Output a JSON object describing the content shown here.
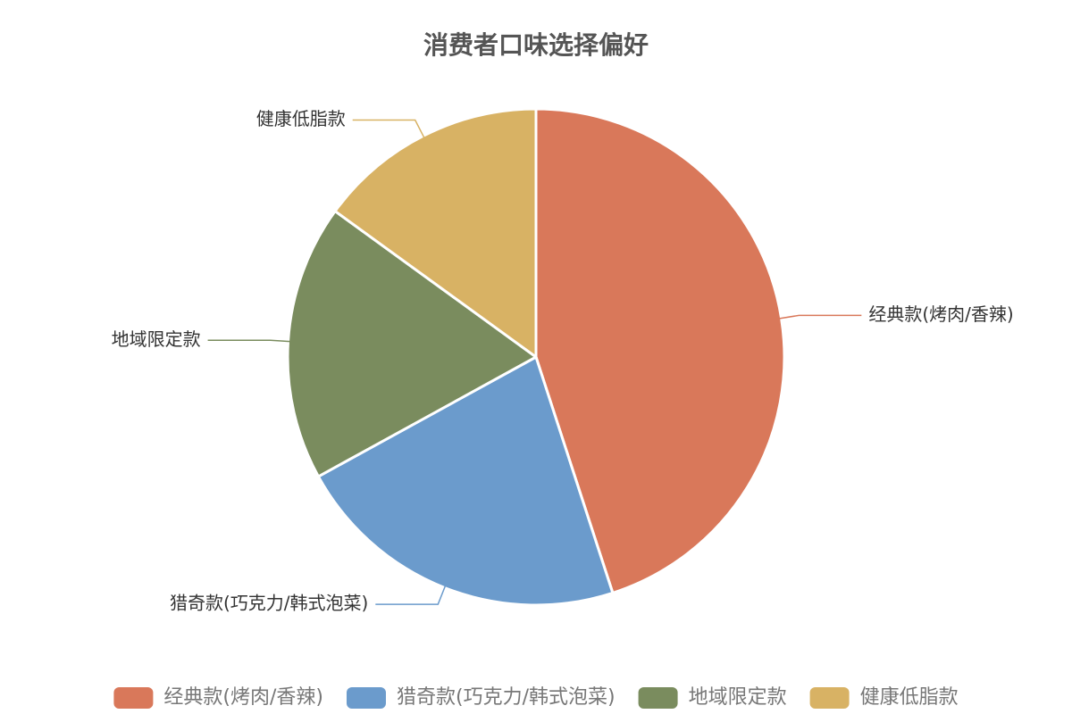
{
  "chart_data": {
    "type": "pie",
    "title": "消费者口味选择偏好",
    "categories": [
      "经典款(烤肉/香辣)",
      "猎奇款(巧克力/韩式泡菜)",
      "地域限定款",
      "健康低脂款"
    ],
    "values": [
      45,
      22,
      18,
      15
    ],
    "colors": [
      "#d9785a",
      "#6b9bcc",
      "#7a8c5e",
      "#d8b264"
    ],
    "legend": "bottom"
  }
}
